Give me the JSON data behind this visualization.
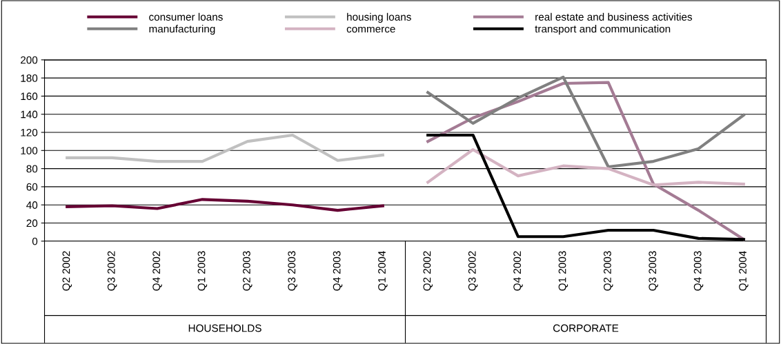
{
  "chart_data": {
    "type": "line",
    "categories": [
      "Q2 2002",
      "Q3 2002",
      "Q4 2002",
      "Q1 2003",
      "Q2 2003",
      "Q3 2003",
      "Q4 2003",
      "Q1 2004",
      "Q2 2002",
      "Q3 2002",
      "Q4 2002",
      "Q1 2003",
      "Q2 2003",
      "Q3 2003",
      "Q4 2003",
      "Q1 2004"
    ],
    "series": [
      {
        "name": "consumer loans",
        "color": "#660033",
        "values": [
          38,
          39,
          36,
          46,
          44,
          40,
          34,
          39,
          null,
          null,
          null,
          null,
          null,
          null,
          null,
          null
        ]
      },
      {
        "name": "housing loans",
        "color": "#c0c0c0",
        "values": [
          92,
          92,
          88,
          88,
          110,
          117,
          89,
          95,
          null,
          null,
          null,
          null,
          null,
          null,
          null,
          null
        ]
      },
      {
        "name": "real estate and business activities",
        "color": "#a47b94",
        "values": [
          null,
          null,
          null,
          null,
          null,
          null,
          null,
          null,
          110,
          136,
          154,
          174,
          175,
          63,
          34,
          2
        ]
      },
      {
        "name": "manufacturing",
        "color": "#808080",
        "values": [
          null,
          null,
          null,
          null,
          null,
          null,
          null,
          null,
          164,
          130,
          158,
          181,
          82,
          88,
          102,
          139
        ]
      },
      {
        "name": "commerce",
        "color": "#d4b3c2",
        "values": [
          null,
          null,
          null,
          null,
          null,
          null,
          null,
          null,
          65,
          101,
          72,
          83,
          80,
          62,
          65,
          63
        ]
      },
      {
        "name": "transport and communication",
        "color": "#000000",
        "values": [
          null,
          null,
          null,
          null,
          null,
          null,
          null,
          null,
          117,
          117,
          5,
          5,
          12,
          12,
          3,
          2
        ]
      }
    ],
    "ylim": [
      0,
      200
    ],
    "yticks": [
      0,
      20,
      40,
      60,
      80,
      100,
      120,
      140,
      160,
      180,
      200
    ],
    "grid": "y",
    "legend": "top",
    "marker": "none",
    "line_style": "solid",
    "annotations": [
      "HOUSEHOLDS",
      "CORPORATE"
    ]
  }
}
